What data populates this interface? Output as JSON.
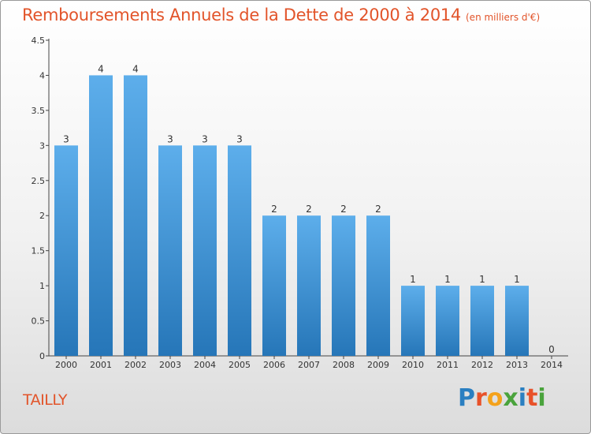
{
  "title": "Remboursements Annuels de la Dette de 2000 à 2014",
  "unit_note": "(en milliers d'€)",
  "town": "TAILLY",
  "logo": {
    "text": "Proxiti",
    "letters": [
      {
        "ch": "P",
        "color": "#2a7fc1"
      },
      {
        "ch": "r",
        "color": "#e8522a"
      },
      {
        "ch": "o",
        "color": "#f4a21b"
      },
      {
        "ch": "x",
        "color": "#4aa33c"
      },
      {
        "ch": "i",
        "color": "#2a7fc1"
      },
      {
        "ch": "t",
        "color": "#e8522a"
      },
      {
        "ch": "i",
        "color": "#4aa33c"
      }
    ]
  },
  "colors": {
    "bar_top": "#5daeeb",
    "bar_bottom": "#2676b8",
    "title": "#e2542a"
  },
  "chart_data": {
    "type": "bar",
    "categories": [
      "2000",
      "2001",
      "2002",
      "2003",
      "2004",
      "2005",
      "2006",
      "2007",
      "2008",
      "2009",
      "2010",
      "2011",
      "2012",
      "2013",
      "2014"
    ],
    "values": [
      3,
      4,
      4,
      3,
      3,
      3,
      2,
      2,
      2,
      2,
      1,
      1,
      1,
      1,
      0
    ],
    "value_labels": [
      "3",
      "4",
      "4",
      "3",
      "3",
      "3",
      "2",
      "2",
      "2",
      "2",
      "1",
      "1",
      "1",
      "1",
      "0"
    ],
    "y_ticks": [
      "0",
      "0.5",
      "1",
      "1.5",
      "2",
      "2.5",
      "3",
      "3.5",
      "4",
      "4.5"
    ],
    "y_tick_values": [
      0,
      0.5,
      1,
      1.5,
      2,
      2.5,
      3,
      3.5,
      4,
      4.5
    ],
    "ylim": [
      0,
      4.5
    ],
    "grid": false
  }
}
